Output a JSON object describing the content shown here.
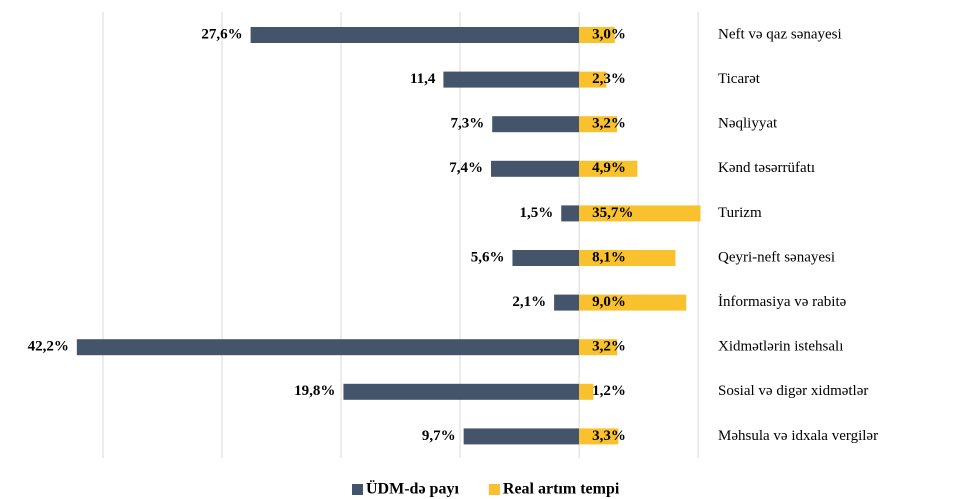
{
  "chart_data": {
    "type": "diverging_bar",
    "categories": [
      "Neft və qaz sənayesi",
      "Ticarət",
      "Nəqliyyat",
      "Kənd təsərrüfatı",
      "Turizm",
      "Qeyri-neft sənayesi",
      "İnformasiya və rabitə",
      "Xidmətlərin istehsalı",
      "Sosial və digər xidmətlər",
      "Məhsula və idxala vergilər"
    ],
    "series": [
      {
        "name": "ÜDM-də payı",
        "color": "#44546a",
        "values": [
          -27.6,
          -11.4,
          -7.3,
          -7.4,
          -1.5,
          -5.6,
          -2.1,
          -42.2,
          -19.8,
          -9.7
        ],
        "value_labels": [
          "27,6%",
          "11,4",
          "7,3%",
          "7,4%",
          "1,5%",
          "5,6%",
          "2,1%",
          "42,2%",
          "19,8%",
          "9,7%"
        ]
      },
      {
        "name": "Real artım tempi",
        "color": "#f8c12d",
        "values": [
          3.0,
          2.3,
          3.2,
          4.9,
          35.7,
          8.1,
          9.0,
          3.2,
          1.2,
          3.3
        ],
        "value_labels": [
          "3,0%",
          "2,3%",
          "3,2%",
          "4,9%",
          "35,7%",
          "8,1%",
          "9,0%",
          "3,2%",
          "1,2%",
          "3,3%"
        ]
      }
    ],
    "xlim": [
      -45,
      10.2
    ],
    "xticks": [
      -40,
      -30,
      -20,
      -10,
      0,
      10
    ],
    "grid": true,
    "legend": "bottom"
  }
}
